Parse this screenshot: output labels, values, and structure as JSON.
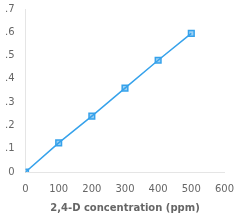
{
  "chart_data": {
    "type": "line",
    "x": [
      0,
      100,
      200,
      300,
      400,
      500
    ],
    "values": [
      0.0,
      0.125,
      0.24,
      0.36,
      0.48,
      0.595
    ],
    "xlabel": "2,4-D concentration (ppm)",
    "xlim": [
      0,
      600
    ],
    "xticks": [
      0,
      100,
      200,
      300,
      400,
      500,
      600
    ],
    "ylim": [
      0,
      0.7
    ],
    "yticks": [
      0,
      {
        "value": 0.1,
        "label": ".1"
      },
      {
        "value": 0.2,
        "label": ".2"
      },
      {
        "value": 0.3,
        "label": ".3"
      },
      {
        "value": 0.4,
        "label": ".4"
      },
      {
        "value": 0.5,
        "label": ".5"
      },
      {
        "value": 0.6,
        "label": ".6"
      },
      {
        "value": 0.7,
        "label": ".7"
      }
    ],
    "marker": "square",
    "grid": false
  }
}
